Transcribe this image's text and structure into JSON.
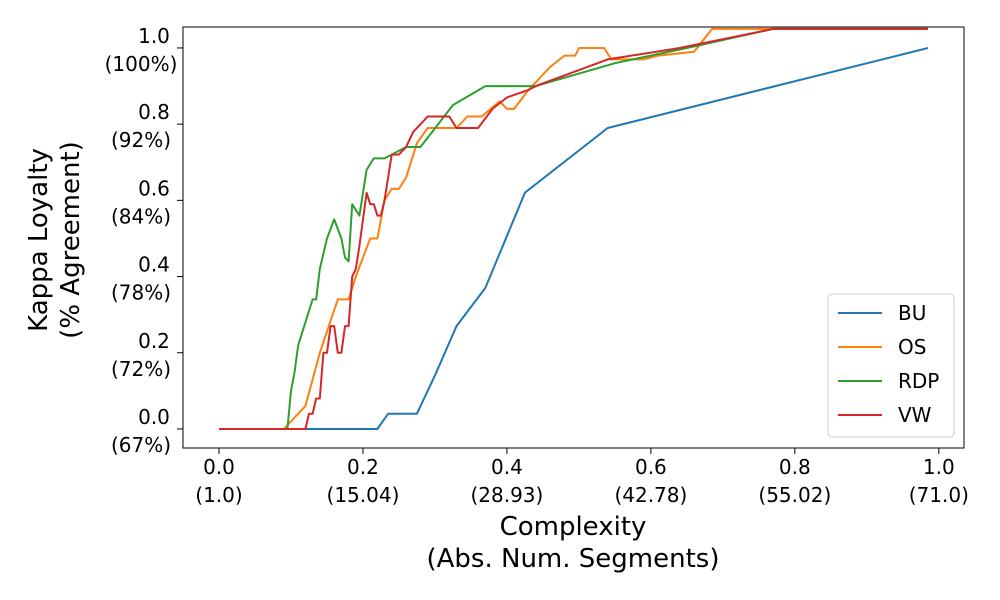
{
  "chart_data": {
    "type": "line",
    "xlabel_lines": [
      "Complexity",
      "(Abs. Num. Segments)"
    ],
    "ylabel_lines": [
      "Kappa Loyalty",
      "(% Agreement)"
    ],
    "xlim": [
      -0.05,
      1.035
    ],
    "ylim": [
      -0.05,
      1.055
    ],
    "x_ticks": [
      {
        "value": 0.0,
        "label1": "0.0",
        "label2": "(1.0)"
      },
      {
        "value": 0.2,
        "label1": "0.2",
        "label2": "(15.04)"
      },
      {
        "value": 0.4,
        "label1": "0.4",
        "label2": "(28.93)"
      },
      {
        "value": 0.6,
        "label1": "0.6",
        "label2": "(42.78)"
      },
      {
        "value": 0.8,
        "label1": "0.8",
        "label2": "(55.02)"
      },
      {
        "value": 1.0,
        "label1": "1.0",
        "label2": "(71.0)"
      }
    ],
    "y_ticks": [
      {
        "value": 0.0,
        "label1": "0.0",
        "label2": "(67%)"
      },
      {
        "value": 0.2,
        "label1": "0.2",
        "label2": "(72%)"
      },
      {
        "value": 0.4,
        "label1": "0.4",
        "label2": "(78%)"
      },
      {
        "value": 0.6,
        "label1": "0.6",
        "label2": "(84%)"
      },
      {
        "value": 0.8,
        "label1": "0.8",
        "label2": "(92%)"
      },
      {
        "value": 1.0,
        "label1": "1.0",
        "label2": "(100%)"
      }
    ],
    "grid": false,
    "legend_position": "lower-right",
    "series": [
      {
        "name": "BU",
        "color": "#1f77b4",
        "points": [
          [
            0.0,
            0.0
          ],
          [
            0.22,
            0.0
          ],
          [
            0.235,
            0.04
          ],
          [
            0.275,
            0.04
          ],
          [
            0.3,
            0.14
          ],
          [
            0.33,
            0.27
          ],
          [
            0.37,
            0.37
          ],
          [
            0.425,
            0.62
          ],
          [
            0.54,
            0.79
          ],
          [
            0.985,
            1.0
          ]
        ]
      },
      {
        "name": "OS",
        "color": "#ff7f0e",
        "points": [
          [
            0.0,
            0.0
          ],
          [
            0.09,
            0.0
          ],
          [
            0.12,
            0.06
          ],
          [
            0.14,
            0.2
          ],
          [
            0.165,
            0.34
          ],
          [
            0.18,
            0.34
          ],
          [
            0.19,
            0.4
          ],
          [
            0.21,
            0.5
          ],
          [
            0.22,
            0.5
          ],
          [
            0.23,
            0.6
          ],
          [
            0.24,
            0.63
          ],
          [
            0.25,
            0.63
          ],
          [
            0.26,
            0.66
          ],
          [
            0.275,
            0.75
          ],
          [
            0.29,
            0.79
          ],
          [
            0.305,
            0.79
          ],
          [
            0.33,
            0.79
          ],
          [
            0.345,
            0.82
          ],
          [
            0.365,
            0.82
          ],
          [
            0.39,
            0.86
          ],
          [
            0.4,
            0.84
          ],
          [
            0.41,
            0.84
          ],
          [
            0.43,
            0.89
          ],
          [
            0.46,
            0.95
          ],
          [
            0.48,
            0.98
          ],
          [
            0.495,
            0.98
          ],
          [
            0.5,
            1.0
          ],
          [
            0.535,
            1.0
          ],
          [
            0.545,
            0.97
          ],
          [
            0.59,
            0.97
          ],
          [
            0.61,
            0.98
          ],
          [
            0.66,
            0.99
          ],
          [
            0.685,
            1.05
          ],
          [
            0.77,
            1.05
          ],
          [
            0.985,
            1.05
          ]
        ]
      },
      {
        "name": "RDP",
        "color": "#2ca02c",
        "points": [
          [
            0.0,
            0.0
          ],
          [
            0.095,
            0.0
          ],
          [
            0.1,
            0.1
          ],
          [
            0.105,
            0.15
          ],
          [
            0.11,
            0.22
          ],
          [
            0.12,
            0.28
          ],
          [
            0.13,
            0.34
          ],
          [
            0.135,
            0.34
          ],
          [
            0.14,
            0.42
          ],
          [
            0.15,
            0.5
          ],
          [
            0.16,
            0.55
          ],
          [
            0.17,
            0.5
          ],
          [
            0.175,
            0.45
          ],
          [
            0.18,
            0.44
          ],
          [
            0.185,
            0.59
          ],
          [
            0.195,
            0.56
          ],
          [
            0.205,
            0.68
          ],
          [
            0.215,
            0.71
          ],
          [
            0.23,
            0.71
          ],
          [
            0.26,
            0.74
          ],
          [
            0.28,
            0.74
          ],
          [
            0.325,
            0.85
          ],
          [
            0.37,
            0.9
          ],
          [
            0.44,
            0.9
          ],
          [
            0.55,
            0.96
          ],
          [
            0.65,
            1.0
          ],
          [
            0.77,
            1.05
          ],
          [
            0.985,
            1.05
          ]
        ]
      },
      {
        "name": "VW",
        "color": "#d62728",
        "points": [
          [
            0.0,
            0.0
          ],
          [
            0.12,
            0.0
          ],
          [
            0.125,
            0.04
          ],
          [
            0.13,
            0.04
          ],
          [
            0.135,
            0.08
          ],
          [
            0.14,
            0.08
          ],
          [
            0.145,
            0.2
          ],
          [
            0.15,
            0.2
          ],
          [
            0.155,
            0.27
          ],
          [
            0.16,
            0.27
          ],
          [
            0.165,
            0.2
          ],
          [
            0.17,
            0.2
          ],
          [
            0.175,
            0.27
          ],
          [
            0.18,
            0.27
          ],
          [
            0.185,
            0.4
          ],
          [
            0.19,
            0.42
          ],
          [
            0.195,
            0.48
          ],
          [
            0.2,
            0.55
          ],
          [
            0.205,
            0.62
          ],
          [
            0.21,
            0.59
          ],
          [
            0.215,
            0.59
          ],
          [
            0.22,
            0.56
          ],
          [
            0.225,
            0.56
          ],
          [
            0.23,
            0.6
          ],
          [
            0.24,
            0.72
          ],
          [
            0.25,
            0.72
          ],
          [
            0.26,
            0.74
          ],
          [
            0.27,
            0.78
          ],
          [
            0.28,
            0.8
          ],
          [
            0.29,
            0.82
          ],
          [
            0.32,
            0.82
          ],
          [
            0.33,
            0.79
          ],
          [
            0.36,
            0.79
          ],
          [
            0.38,
            0.84
          ],
          [
            0.4,
            0.87
          ],
          [
            0.43,
            0.89
          ],
          [
            0.44,
            0.9
          ],
          [
            0.54,
            0.97
          ],
          [
            0.64,
            1.0
          ],
          [
            0.77,
            1.05
          ],
          [
            0.985,
            1.05
          ]
        ]
      }
    ]
  }
}
